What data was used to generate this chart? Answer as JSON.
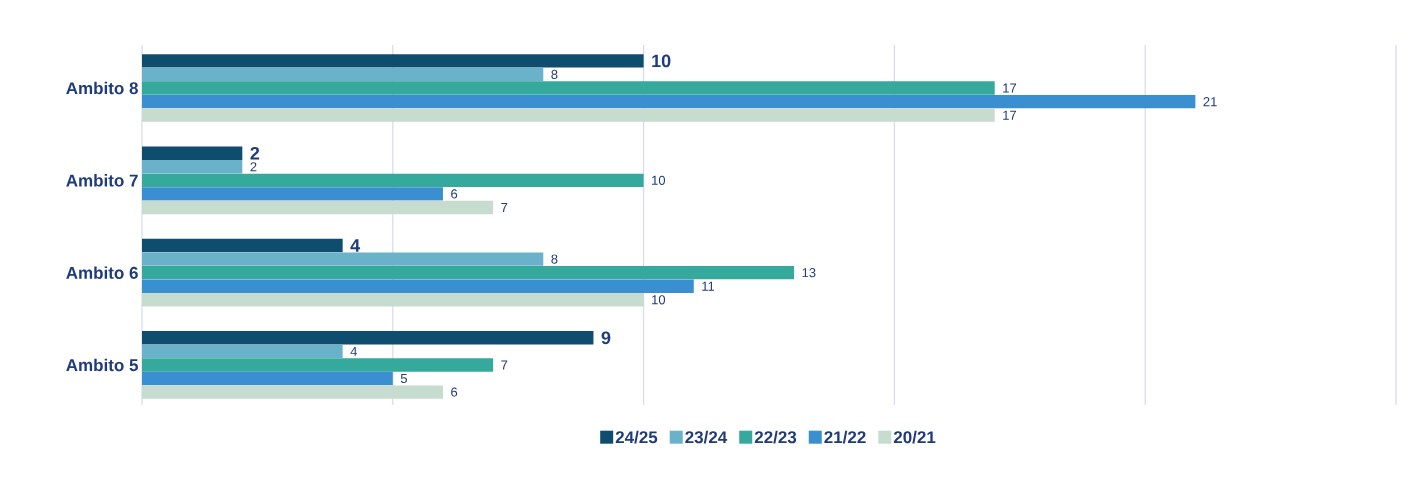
{
  "chart_data": {
    "type": "bar",
    "orientation": "horizontal",
    "categories": [
      "Ambito 8",
      "Ambito 7",
      "Ambito 6",
      "Ambito 5"
    ],
    "series": [
      {
        "name": "24/25",
        "color": "#0e4d6e",
        "values": [
          10,
          2,
          4,
          9
        ]
      },
      {
        "name": "23/24",
        "color": "#6ab2c9",
        "values": [
          8,
          2,
          8,
          4
        ]
      },
      {
        "name": "22/23",
        "color": "#35a99b",
        "values": [
          17,
          10,
          13,
          7
        ]
      },
      {
        "name": "21/22",
        "color": "#3a8fd0",
        "values": [
          21,
          6,
          11,
          5
        ]
      },
      {
        "name": "20/21",
        "color": "#c5dccf",
        "values": [
          17,
          7,
          10,
          6
        ]
      }
    ],
    "xlim": [
      0,
      25
    ],
    "xticks": [
      {
        "value": 0,
        "label": null
      },
      {
        "value": 5,
        "label": null
      },
      {
        "value": 10,
        "label": null
      },
      {
        "value": 15,
        "label": null
      },
      {
        "value": 20,
        "label": null
      },
      {
        "value": 25,
        "label": null
      }
    ],
    "tick_labels": "y",
    "grid": "x",
    "legend": "bottom",
    "data_labels": true
  }
}
